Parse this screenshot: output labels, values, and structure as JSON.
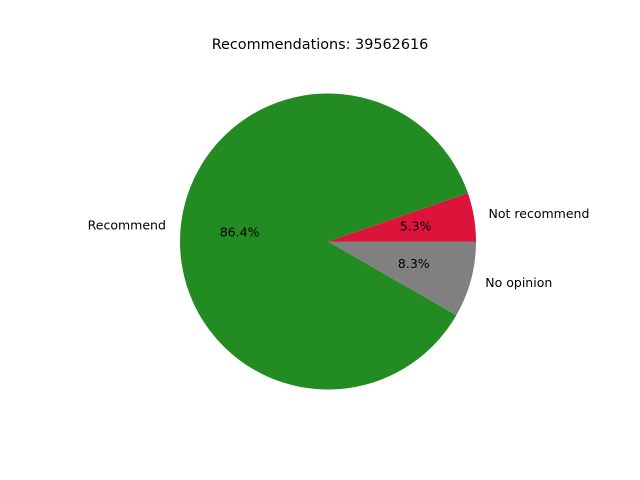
{
  "chart_data": {
    "type": "pie",
    "title": "Recommendations: 39562616",
    "slices": [
      {
        "label": "Not recommend",
        "pct_label": "5.3%",
        "value": 5.3,
        "color": "#dc143c"
      },
      {
        "label": "Recommend",
        "pct_label": "86.4%",
        "value": 86.4,
        "color": "#228b22"
      },
      {
        "label": "No opinion",
        "pct_label": "8.3%",
        "value": 8.3,
        "color": "#808080"
      }
    ],
    "start_angle_deg": 0,
    "direction": "counterclockwise",
    "legend": "none"
  }
}
